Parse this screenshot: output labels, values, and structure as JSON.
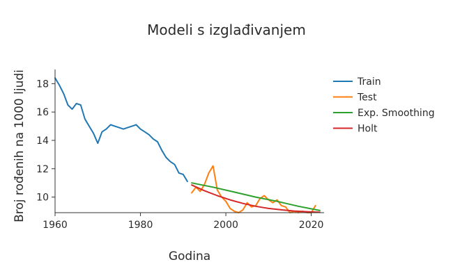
{
  "chart_data": {
    "type": "line",
    "title": "Modeli s izglađivanjem",
    "xlabel": "Godina",
    "ylabel": "Broj rođenih na 1000 ljudi",
    "xlim": [
      1960,
      2023
    ],
    "ylim": [
      8.9,
      19.0
    ],
    "x_ticks": [
      1960,
      1980,
      2000,
      2020
    ],
    "y_ticks": [
      10,
      12,
      14,
      16,
      18
    ],
    "grid": false,
    "legend_position": "right",
    "series": [
      {
        "name": "Train",
        "color": "#1f77b4",
        "x": [
          1960,
          1961,
          1962,
          1963,
          1964,
          1965,
          1966,
          1967,
          1968,
          1969,
          1970,
          1971,
          1972,
          1973,
          1974,
          1975,
          1976,
          1977,
          1978,
          1979,
          1980,
          1981,
          1982,
          1983,
          1984,
          1985,
          1986,
          1987,
          1988,
          1989,
          1990,
          1991
        ],
        "y": [
          18.4,
          17.9,
          17.3,
          16.5,
          16.2,
          16.6,
          16.5,
          15.5,
          15.0,
          14.5,
          13.8,
          14.6,
          14.8,
          15.1,
          15.0,
          14.9,
          14.8,
          14.9,
          15.0,
          15.1,
          14.8,
          14.6,
          14.4,
          14.1,
          13.9,
          13.3,
          12.8,
          12.5,
          12.3,
          11.7,
          11.6,
          11.1
        ]
      },
      {
        "name": "Test",
        "color": "#ff7f0e",
        "x": [
          1992,
          1993,
          1994,
          1995,
          1996,
          1997,
          1998,
          1999,
          2000,
          2001,
          2002,
          2003,
          2004,
          2005,
          2006,
          2007,
          2008,
          2009,
          2010,
          2011,
          2012,
          2013,
          2014,
          2015,
          2016,
          2017,
          2018,
          2019,
          2020,
          2021
        ],
        "y": [
          10.3,
          10.7,
          10.4,
          10.9,
          11.7,
          12.2,
          10.5,
          10.0,
          9.7,
          9.2,
          9.0,
          8.9,
          9.1,
          9.6,
          9.3,
          9.4,
          9.9,
          10.1,
          9.8,
          9.6,
          9.8,
          9.4,
          9.3,
          8.9,
          9.0,
          8.9,
          9.0,
          8.9,
          8.9,
          9.4
        ]
      },
      {
        "name": "Exp. Smoothing",
        "color": "#2ca02c",
        "x": [
          1992,
          1997,
          2002,
          2007,
          2012,
          2017,
          2022
        ],
        "y": [
          11.0,
          10.7,
          10.35,
          10.0,
          9.7,
          9.35,
          9.05
        ]
      },
      {
        "name": "Holt",
        "color": "#d62728",
        "x": [
          1992,
          1995,
          1998,
          2001,
          2004,
          2007,
          2010,
          2013,
          2016,
          2019,
          2022
        ],
        "y": [
          10.85,
          10.45,
          10.1,
          9.8,
          9.55,
          9.35,
          9.2,
          9.1,
          9.02,
          8.97,
          8.93
        ]
      }
    ]
  }
}
